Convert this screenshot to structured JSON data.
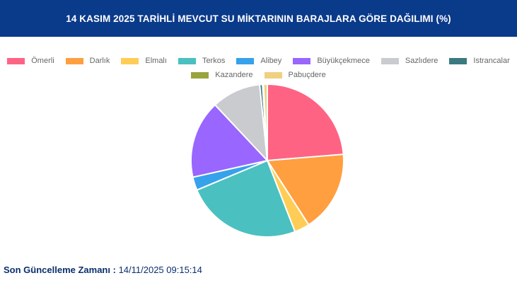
{
  "header": {
    "title": "14 KASIM 2025 TARİHLİ MEVCUT SU MİKTARININ BARAJLARA GÖRE DAĞILIMI (%)"
  },
  "chart_data": {
    "type": "pie",
    "title": "14 KASIM 2025 TARİHLİ MEVCUT SU MİKTARININ BARAJLARA GÖRE DAĞILIMI (%)",
    "legend_position": "top",
    "categories": [
      "Ömerli",
      "Darlık",
      "Elmalı",
      "Terkos",
      "Alibey",
      "Büyükçekmece",
      "Sazlıdere",
      "Istrancalar",
      "Kazandere",
      "Pabuçdere"
    ],
    "values": [
      23.7,
      17.2,
      3.2,
      24.6,
      2.8,
      16.5,
      10.4,
      0.6,
      0.2,
      0.8
    ],
    "colors": [
      "#ff6384",
      "#ff9f40",
      "#ffcd56",
      "#4bc0c0",
      "#36a2eb",
      "#9966ff",
      "#c9cbcf",
      "#3b7a80",
      "#9aa33d",
      "#f0d080"
    ]
  },
  "footer": {
    "label": "Son Güncelleme Zamanı :",
    "value": "14/11/2025 09:15:14"
  }
}
